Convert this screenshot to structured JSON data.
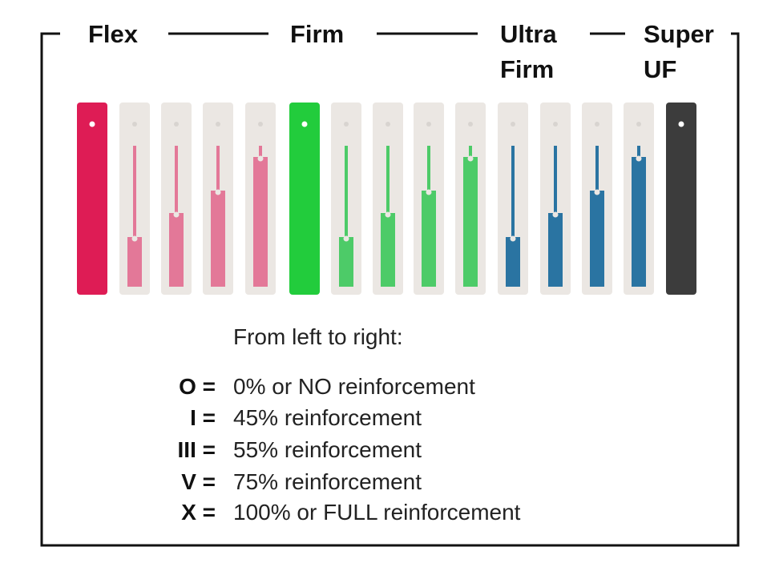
{
  "groups": [
    [
      "Flex"
    ],
    [
      "Firm"
    ],
    [
      "Ultra",
      "Firm"
    ],
    [
      "Super",
      "UF"
    ]
  ],
  "legend": {
    "intro": "From left to right:",
    "items": [
      {
        "key": "O =",
        "text": "0% or NO reinforcement"
      },
      {
        "key": "I =",
        "text": "45% reinforcement"
      },
      {
        "key": "III =",
        "text": "55% reinforcement"
      },
      {
        "key": "V =",
        "text": "75% reinforcement"
      },
      {
        "key": "X =",
        "text": "100% or FULL reinforcement"
      }
    ]
  }
}
